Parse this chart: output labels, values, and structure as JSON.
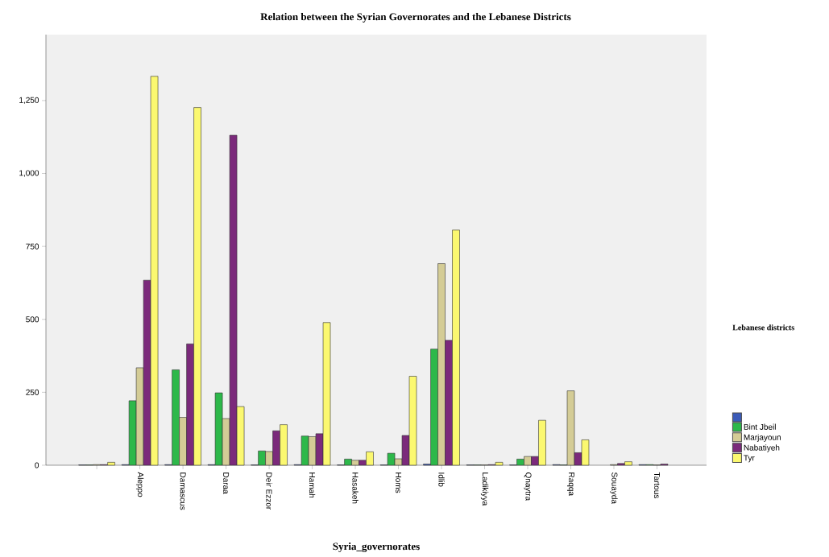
{
  "chart_data": {
    "type": "bar",
    "title": "Relation between the Syrian Governorates and the Lebanese Districts",
    "xlabel": "Syria_governorates",
    "legend_title": "Lebanese districts",
    "legend": "right",
    "grid": false,
    "categories": [
      null,
      "Aleppo",
      "Damascus",
      "Daraa",
      "Deir Ezzor",
      "Hamah",
      "Hasakeh",
      "Homs",
      "Idlib",
      "Ladikiyya",
      "Qnaytra",
      "Raqqa",
      "Souayda",
      "Tartous"
    ],
    "ylim": [
      0,
      1476
    ],
    "yticks": [
      0,
      250,
      500,
      750,
      {
        "value": 1000,
        "label": "1,000"
      },
      {
        "value": 1250,
        "label": "1,250"
      }
    ],
    "series": [
      {
        "color": "#3b5bb8",
        "values": [
          1,
          2,
          2,
          2,
          1,
          2,
          1,
          1,
          4,
          1,
          1,
          2,
          null,
          2
        ]
      },
      {
        "name": "Bint Jbeil",
        "color": "#2db84a",
        "values": [
          1,
          221,
          327,
          248,
          49,
          100,
          21,
          41,
          398,
          1,
          21,
          1,
          null,
          2
        ]
      },
      {
        "name": "Marjayoun",
        "color": "#d4cc96",
        "values": [
          2,
          334,
          164,
          160,
          47,
          98,
          17,
          22,
          691,
          1,
          30,
          255,
          2,
          1
        ]
      },
      {
        "name": "Nabatiyeh",
        "color": "#7b2a7b",
        "values": [
          2,
          634,
          416,
          1131,
          118,
          108,
          17,
          102,
          428,
          2,
          30,
          43,
          6,
          4
        ]
      },
      {
        "name": "Tyr",
        "color": "#fbf870",
        "values": [
          10,
          1333,
          1226,
          201,
          139,
          489,
          46,
          305,
          806,
          10,
          154,
          87,
          12,
          null
        ]
      }
    ]
  }
}
